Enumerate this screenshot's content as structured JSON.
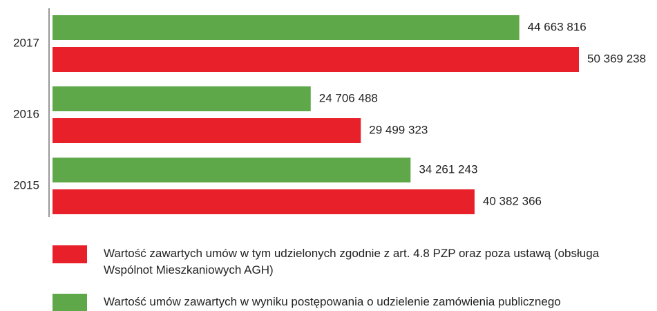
{
  "chart_data": {
    "type": "bar",
    "orientation": "horizontal",
    "categories": [
      "2017",
      "2016",
      "2015"
    ],
    "series": [
      {
        "name": "Wartość zawartych umów w tym udzielonych zgodnie z art. 4.8 PZP oraz poza ustawą (obsługa Wspólnot Mieszkaniowych AGH)",
        "color": "#e8202a",
        "values": [
          50369238,
          29499323,
          40382366
        ],
        "value_labels": [
          "50 369 238",
          "29 499 323",
          "40 382 366"
        ]
      },
      {
        "name": "Wartość umów zawartych w wyniku postępowania o udzielenie zamówienia publicznego",
        "color": "#5fa84a",
        "values": [
          44663816,
          24706488,
          34261243
        ],
        "value_labels": [
          "44 663 816",
          "24 706 488",
          "34 261 243"
        ]
      }
    ]
  }
}
